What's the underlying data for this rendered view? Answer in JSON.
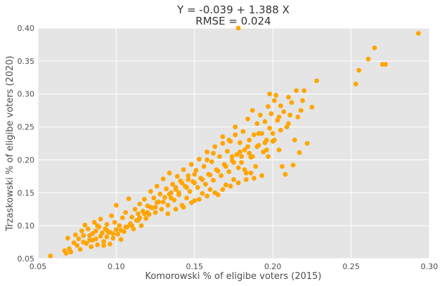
{
  "chart_data": {
    "type": "scatter",
    "title_line1": "Y = -0.039 + 1.388 X",
    "title_line2": "RMSE = 0.024",
    "xlabel": "Komorowski % of eligibe voters (2015)",
    "ylabel": "Trzaskowski % of eligibe voters (2020)",
    "xlim": [
      0.05,
      0.3
    ],
    "ylim": [
      0.05,
      0.4
    ],
    "xticks": [
      "0.05",
      "0.10",
      "0.15",
      "0.20",
      "0.25",
      "0.30"
    ],
    "yticks": [
      "0.05",
      "0.10",
      "0.15",
      "0.20",
      "0.25",
      "0.30",
      "0.35",
      "0.40"
    ],
    "grid": true,
    "marker_color": "#FFA500",
    "background_color": "#E5E5E5",
    "grid_color": "#FFFFFF",
    "points": [
      [
        0.058,
        0.054
      ],
      [
        0.067,
        0.062
      ],
      [
        0.068,
        0.058
      ],
      [
        0.069,
        0.081
      ],
      [
        0.07,
        0.065
      ],
      [
        0.071,
        0.06
      ],
      [
        0.073,
        0.074
      ],
      [
        0.074,
        0.086
      ],
      [
        0.075,
        0.07
      ],
      [
        0.076,
        0.08
      ],
      [
        0.077,
        0.064
      ],
      [
        0.078,
        0.092
      ],
      [
        0.079,
        0.085
      ],
      [
        0.08,
        0.101
      ],
      [
        0.081,
        0.073
      ],
      [
        0.082,
        0.095
      ],
      [
        0.083,
        0.078
      ],
      [
        0.084,
        0.068
      ],
      [
        0.085,
        0.088
      ],
      [
        0.086,
        0.105
      ],
      [
        0.087,
        0.08
      ],
      [
        0.087,
        0.092
      ],
      [
        0.088,
        0.071
      ],
      [
        0.089,
        0.098
      ],
      [
        0.09,
        0.084
      ],
      [
        0.09,
        0.11
      ],
      [
        0.091,
        0.089
      ],
      [
        0.092,
        0.076
      ],
      [
        0.093,
        0.095
      ],
      [
        0.094,
        0.102
      ],
      [
        0.094,
        0.083
      ],
      [
        0.095,
        0.09
      ],
      [
        0.096,
        0.072
      ],
      [
        0.097,
        0.115
      ],
      [
        0.098,
        0.081
      ],
      [
        0.099,
        0.105
      ],
      [
        0.1,
        0.094
      ],
      [
        0.1,
        0.131
      ],
      [
        0.101,
        0.087
      ],
      [
        0.102,
        0.1
      ],
      [
        0.103,
        0.079
      ],
      [
        0.104,
        0.112
      ],
      [
        0.105,
        0.091
      ],
      [
        0.106,
        0.12
      ],
      [
        0.107,
        0.098
      ],
      [
        0.108,
        0.141
      ],
      [
        0.109,
        0.103
      ],
      [
        0.11,
        0.113
      ],
      [
        0.111,
        0.095
      ],
      [
        0.112,
        0.125
      ],
      [
        0.113,
        0.108
      ],
      [
        0.114,
        0.118
      ],
      [
        0.115,
        0.133
      ],
      [
        0.116,
        0.1
      ],
      [
        0.117,
        0.122
      ],
      [
        0.118,
        0.14
      ],
      [
        0.119,
        0.111
      ],
      [
        0.12,
        0.13
      ],
      [
        0.121,
        0.117
      ],
      [
        0.122,
        0.152
      ],
      [
        0.123,
        0.127
      ],
      [
        0.124,
        0.142
      ],
      [
        0.125,
        0.12
      ],
      [
        0.126,
        0.16
      ],
      [
        0.127,
        0.136
      ],
      [
        0.128,
        0.148
      ],
      [
        0.129,
        0.125
      ],
      [
        0.13,
        0.171
      ],
      [
        0.131,
        0.143
      ],
      [
        0.132,
        0.156
      ],
      [
        0.133,
        0.131
      ],
      [
        0.134,
        0.18
      ],
      [
        0.135,
        0.15
      ],
      [
        0.136,
        0.163
      ],
      [
        0.137,
        0.139
      ],
      [
        0.138,
        0.158
      ],
      [
        0.139,
        0.175
      ],
      [
        0.14,
        0.147
      ],
      [
        0.141,
        0.168
      ],
      [
        0.142,
        0.131
      ],
      [
        0.143,
        0.185
      ],
      [
        0.144,
        0.16
      ],
      [
        0.145,
        0.142
      ],
      [
        0.146,
        0.176
      ],
      [
        0.147,
        0.152
      ],
      [
        0.148,
        0.193
      ],
      [
        0.149,
        0.167
      ],
      [
        0.15,
        0.138
      ],
      [
        0.151,
        0.184
      ],
      [
        0.152,
        0.158
      ],
      [
        0.153,
        0.201
      ],
      [
        0.154,
        0.172
      ],
      [
        0.155,
        0.149
      ],
      [
        0.156,
        0.19
      ],
      [
        0.157,
        0.163
      ],
      [
        0.158,
        0.212
      ],
      [
        0.159,
        0.178
      ],
      [
        0.16,
        0.155
      ],
      [
        0.161,
        0.197
      ],
      [
        0.162,
        0.169
      ],
      [
        0.163,
        0.22
      ],
      [
        0.164,
        0.185
      ],
      [
        0.165,
        0.147
      ],
      [
        0.166,
        0.205
      ],
      [
        0.167,
        0.176
      ],
      [
        0.168,
        0.235
      ],
      [
        0.169,
        0.193
      ],
      [
        0.17,
        0.162
      ],
      [
        0.171,
        0.213
      ],
      [
        0.172,
        0.182
      ],
      [
        0.173,
        0.228
      ],
      [
        0.174,
        0.199
      ],
      [
        0.175,
        0.17
      ],
      [
        0.176,
        0.25
      ],
      [
        0.177,
        0.208
      ],
      [
        0.178,
        0.188
      ],
      [
        0.178,
        0.4
      ],
      [
        0.179,
        0.226
      ],
      [
        0.18,
        0.196
      ],
      [
        0.181,
        0.243
      ],
      [
        0.182,
        0.215
      ],
      [
        0.183,
        0.18
      ],
      [
        0.184,
        0.262
      ],
      [
        0.185,
        0.23
      ],
      [
        0.186,
        0.204
      ],
      [
        0.187,
        0.275
      ],
      [
        0.188,
        0.238
      ],
      [
        0.189,
        0.19
      ],
      [
        0.19,
        0.255
      ],
      [
        0.191,
        0.222
      ],
      [
        0.192,
        0.268
      ],
      [
        0.193,
        0.24
      ],
      [
        0.194,
        0.212
      ],
      [
        0.195,
        0.258
      ],
      [
        0.196,
        0.23
      ],
      [
        0.197,
        0.281
      ],
      [
        0.198,
        0.248
      ],
      [
        0.199,
        0.27
      ],
      [
        0.2,
        0.228
      ],
      [
        0.201,
        0.29
      ],
      [
        0.202,
        0.298
      ],
      [
        0.203,
        0.26
      ],
      [
        0.204,
        0.215
      ],
      [
        0.205,
        0.282
      ],
      [
        0.206,
        0.19
      ],
      [
        0.207,
        0.273
      ],
      [
        0.208,
        0.178
      ],
      [
        0.209,
        0.25
      ],
      [
        0.21,
        0.295
      ],
      [
        0.211,
        0.268
      ],
      [
        0.212,
        0.287
      ],
      [
        0.213,
        0.192
      ],
      [
        0.214,
        0.23
      ],
      [
        0.215,
        0.305
      ],
      [
        0.216,
        0.265
      ],
      [
        0.217,
        0.211
      ],
      [
        0.218,
        0.275
      ],
      [
        0.219,
        0.29
      ],
      [
        0.22,
        0.305
      ],
      [
        0.222,
        0.225
      ],
      [
        0.225,
        0.28
      ],
      [
        0.228,
        0.32
      ],
      [
        0.253,
        0.315
      ],
      [
        0.255,
        0.336
      ],
      [
        0.261,
        0.353
      ],
      [
        0.265,
        0.37
      ],
      [
        0.27,
        0.345
      ],
      [
        0.272,
        0.345
      ],
      [
        0.293,
        0.392
      ],
      [
        0.085,
        0.078
      ],
      [
        0.092,
        0.07
      ],
      [
        0.096,
        0.09
      ],
      [
        0.103,
        0.093
      ],
      [
        0.11,
        0.1
      ],
      [
        0.115,
        0.112
      ],
      [
        0.12,
        0.12
      ],
      [
        0.125,
        0.128
      ],
      [
        0.13,
        0.136
      ],
      [
        0.135,
        0.142
      ],
      [
        0.14,
        0.15
      ],
      [
        0.145,
        0.158
      ],
      [
        0.15,
        0.165
      ],
      [
        0.155,
        0.17
      ],
      [
        0.16,
        0.177
      ],
      [
        0.165,
        0.183
      ],
      [
        0.17,
        0.19
      ],
      [
        0.175,
        0.196
      ],
      [
        0.18,
        0.205
      ],
      [
        0.185,
        0.21
      ],
      [
        0.19,
        0.22
      ],
      [
        0.195,
        0.226
      ],
      [
        0.2,
        0.24
      ],
      [
        0.205,
        0.245
      ],
      [
        0.21,
        0.255
      ],
      [
        0.133,
        0.118
      ],
      [
        0.138,
        0.125
      ],
      [
        0.143,
        0.128
      ],
      [
        0.148,
        0.135
      ],
      [
        0.153,
        0.14
      ],
      [
        0.158,
        0.145
      ],
      [
        0.163,
        0.15
      ],
      [
        0.168,
        0.155
      ],
      [
        0.173,
        0.16
      ],
      [
        0.178,
        0.165
      ],
      [
        0.183,
        0.17
      ],
      [
        0.188,
        0.172
      ],
      [
        0.193,
        0.176
      ],
      [
        0.182,
        0.185
      ],
      [
        0.186,
        0.18
      ],
      [
        0.172,
        0.23
      ],
      [
        0.176,
        0.238
      ],
      [
        0.168,
        0.225
      ],
      [
        0.162,
        0.21
      ],
      [
        0.158,
        0.2
      ],
      [
        0.15,
        0.178
      ],
      [
        0.146,
        0.17
      ],
      [
        0.142,
        0.165
      ],
      [
        0.138,
        0.155
      ],
      [
        0.134,
        0.148
      ],
      [
        0.126,
        0.135
      ],
      [
        0.122,
        0.128
      ],
      [
        0.118,
        0.118
      ],
      [
        0.114,
        0.108
      ],
      [
        0.106,
        0.098
      ],
      [
        0.098,
        0.088
      ],
      [
        0.094,
        0.093
      ],
      [
        0.088,
        0.1
      ],
      [
        0.083,
        0.085
      ],
      [
        0.079,
        0.075
      ],
      [
        0.197,
        0.205
      ],
      [
        0.201,
        0.23
      ],
      [
        0.204,
        0.265
      ],
      [
        0.198,
        0.3
      ],
      [
        0.196,
        0.215
      ],
      [
        0.191,
        0.24
      ],
      [
        0.187,
        0.205
      ],
      [
        0.184,
        0.22
      ],
      [
        0.179,
        0.212
      ],
      [
        0.174,
        0.205
      ]
    ]
  }
}
